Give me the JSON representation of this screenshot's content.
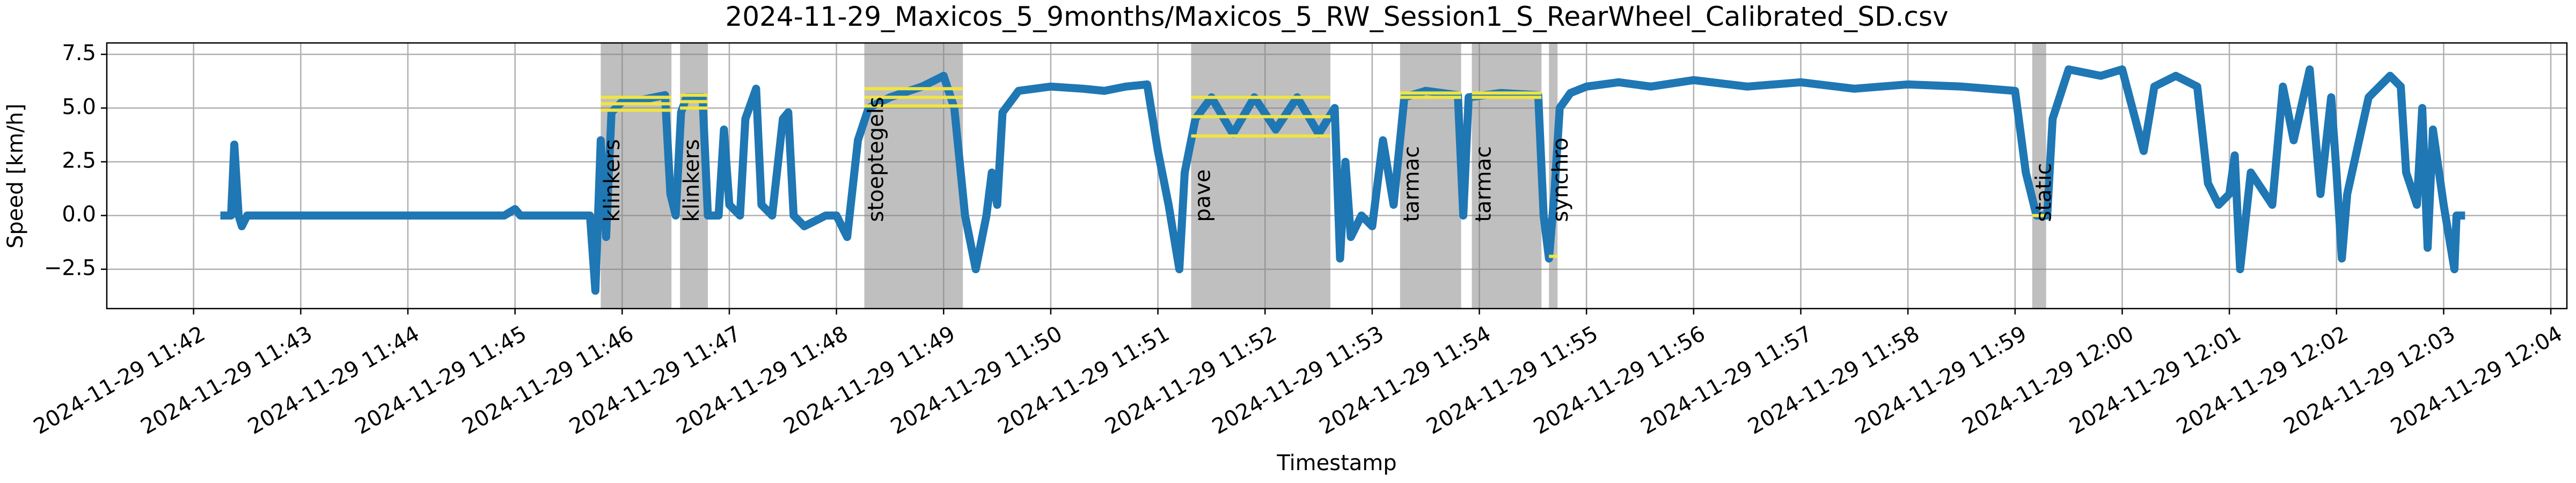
{
  "chart_data": {
    "type": "line",
    "title": "2024-11-29_Maxicos_5_9months/Maxicos_5_RW_Session1_S_RearWheel_Calibrated_SD.csv",
    "xlabel": "Timestamp",
    "ylabel": "Speed [km/h]",
    "color": "#1f77b4",
    "grid": true,
    "xlim": [
      701.19,
      724.15
    ],
    "xticks": [
      {
        "value": 702,
        "label": "2024-11-29 11:42"
      },
      {
        "value": 703,
        "label": "2024-11-29 11:43"
      },
      {
        "value": 704,
        "label": "2024-11-29 11:44"
      },
      {
        "value": 705,
        "label": "2024-11-29 11:45"
      },
      {
        "value": 706,
        "label": "2024-11-29 11:46"
      },
      {
        "value": 707,
        "label": "2024-11-29 11:47"
      },
      {
        "value": 708,
        "label": "2024-11-29 11:48"
      },
      {
        "value": 709,
        "label": "2024-11-29 11:49"
      },
      {
        "value": 710,
        "label": "2024-11-29 11:50"
      },
      {
        "value": 711,
        "label": "2024-11-29 11:51"
      },
      {
        "value": 712,
        "label": "2024-11-29 11:52"
      },
      {
        "value": 713,
        "label": "2024-11-29 11:53"
      },
      {
        "value": 714,
        "label": "2024-11-29 11:54"
      },
      {
        "value": 715,
        "label": "2024-11-29 11:55"
      },
      {
        "value": 716,
        "label": "2024-11-29 11:56"
      },
      {
        "value": 717,
        "label": "2024-11-29 11:57"
      },
      {
        "value": 718,
        "label": "2024-11-29 11:58"
      },
      {
        "value": 719,
        "label": "2024-11-29 11:59"
      },
      {
        "value": 720,
        "label": "2024-11-29 12:00"
      },
      {
        "value": 721,
        "label": "2024-11-29 12:01"
      },
      {
        "value": 722,
        "label": "2024-11-29 12:02"
      },
      {
        "value": 723,
        "label": "2024-11-29 12:03"
      },
      {
        "value": 724,
        "label": "2024-11-29 12:04"
      }
    ],
    "ylim": [
      -4.33,
      8.03
    ],
    "yticks": [
      {
        "value": -2.5,
        "label": "−2.5"
      },
      {
        "value": 0,
        "label": "0.0"
      },
      2.5,
      {
        "value": 5,
        "label": "5.0"
      },
      7.5
    ],
    "x": [
      702.25,
      702.35,
      702.38,
      702.42,
      702.45,
      702.5,
      703.0,
      703.5,
      704.0,
      704.5,
      704.9,
      705.0,
      705.05,
      705.7,
      705.75,
      705.8,
      705.85,
      705.9,
      706.0,
      706.2,
      706.4,
      706.45,
      706.5,
      706.55,
      706.6,
      706.75,
      706.8,
      706.9,
      706.95,
      707.0,
      707.1,
      707.15,
      707.25,
      707.3,
      707.4,
      707.5,
      707.55,
      707.6,
      707.7,
      707.9,
      708.0,
      708.1,
      708.2,
      708.3,
      708.5,
      708.8,
      709.0,
      709.1,
      709.2,
      709.3,
      709.4,
      709.45,
      709.5,
      709.55,
      709.7,
      710.0,
      710.3,
      710.5,
      710.7,
      710.9,
      711.0,
      711.1,
      711.2,
      711.25,
      711.35,
      711.5,
      711.7,
      711.9,
      712.1,
      712.3,
      712.5,
      712.65,
      712.7,
      712.75,
      712.8,
      712.9,
      713.0,
      713.1,
      713.2,
      713.3,
      713.5,
      713.8,
      713.85,
      713.9,
      714.2,
      714.55,
      714.6,
      714.65,
      714.7,
      714.75,
      714.85,
      715.0,
      715.3,
      715.6,
      716.0,
      716.5,
      717.0,
      717.5,
      718.0,
      718.5,
      719.0,
      719.1,
      719.2,
      719.3,
      719.35,
      719.5,
      719.8,
      720.0,
      720.2,
      720.3,
      720.5,
      720.7,
      720.8,
      720.9,
      721.0,
      721.05,
      721.1,
      721.2,
      721.4,
      721.5,
      721.6,
      721.75,
      721.85,
      721.95,
      722.0,
      722.05,
      722.1,
      722.3,
      722.5,
      722.6,
      722.65,
      722.75,
      722.8,
      722.85,
      722.9,
      723.0,
      723.1,
      723.12,
      723.2
    ],
    "values": [
      0,
      0,
      3.3,
      0,
      -0.5,
      0,
      0,
      0,
      0,
      0,
      0,
      0.3,
      0,
      0,
      -3.5,
      3.5,
      -1,
      4.8,
      5.3,
      5.4,
      5.6,
      1,
      0,
      4.8,
      5.5,
      5.5,
      0,
      0,
      4.0,
      0.5,
      0,
      4.5,
      5.9,
      0.5,
      0,
      4.5,
      4.8,
      0,
      -0.5,
      0,
      0,
      -1.0,
      3.5,
      5.0,
      5.5,
      6.0,
      6.5,
      5.0,
      0,
      -2.5,
      0,
      2.0,
      0.5,
      4.8,
      5.8,
      6.0,
      5.9,
      5.8,
      6.0,
      6.1,
      3.0,
      0.5,
      -2.5,
      2.0,
      4.5,
      5.5,
      3.8,
      5.5,
      4.0,
      5.5,
      3.8,
      5.0,
      -2.0,
      2.5,
      -1.0,
      0,
      -0.5,
      3.5,
      0.5,
      5.5,
      5.8,
      5.6,
      0,
      5.5,
      5.7,
      5.6,
      0,
      -2.0,
      1.0,
      5.0,
      5.7,
      6.0,
      6.2,
      6.0,
      6.3,
      6.0,
      6.2,
      5.9,
      6.1,
      6.0,
      5.8,
      2.0,
      0,
      0,
      4.5,
      6.8,
      6.5,
      6.8,
      3.0,
      6.0,
      6.5,
      6.0,
      1.5,
      0.5,
      1.0,
      2.8,
      -2.5,
      2.0,
      0.5,
      6.0,
      3.5,
      6.8,
      1.0,
      5.5,
      2.0,
      -2.0,
      1.0,
      5.5,
      6.5,
      6.0,
      2.0,
      0.5,
      5.0,
      -1.5,
      4.0,
      0.5,
      -2.5,
      0,
      0
    ],
    "regions": [
      {
        "label": "klinkers",
        "start": 705.8,
        "end": 706.46,
        "lines": [
          4.9,
          5.2,
          5.5
        ]
      },
      {
        "label": "klinkers",
        "start": 706.54,
        "end": 706.8,
        "lines": [
          5.0,
          5.3,
          5.6
        ]
      },
      {
        "label": "stoeptegels",
        "start": 708.26,
        "end": 709.18,
        "lines": [
          5.1,
          5.5,
          5.9
        ]
      },
      {
        "label": "pave",
        "start": 711.31,
        "end": 712.61,
        "lines": [
          3.7,
          4.6,
          5.5
        ]
      },
      {
        "label": "tarmac",
        "start": 713.26,
        "end": 713.83,
        "lines": [
          5.5,
          5.7
        ]
      },
      {
        "label": "tarmac",
        "start": 713.93,
        "end": 714.58,
        "lines": [
          5.5,
          5.7
        ]
      },
      {
        "label": "synchro",
        "start": 714.65,
        "end": 714.73,
        "lines": [
          -1.9
        ]
      },
      {
        "label": "static",
        "start": 719.16,
        "end": 719.29,
        "lines": [
          0
        ]
      }
    ]
  }
}
